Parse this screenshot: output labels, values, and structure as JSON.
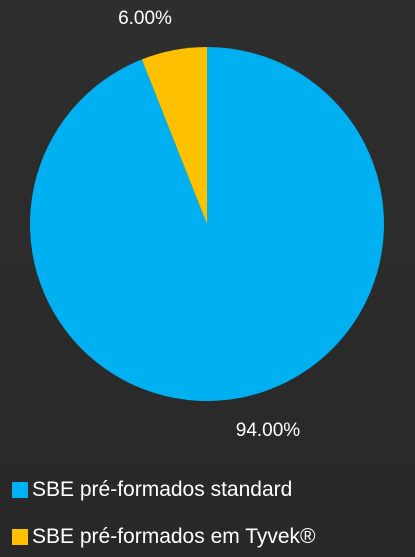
{
  "chart_data": {
    "type": "pie",
    "title": "",
    "series": [
      {
        "name": "SBE pré-formados standard",
        "value": 94.0,
        "label": "94.00%",
        "color": "#00b0f0"
      },
      {
        "name": "SBE pré-formados em Tyvek®",
        "value": 6.0,
        "label": "6.00%",
        "color": "#ffc000"
      }
    ],
    "legend_position": "bottom"
  }
}
